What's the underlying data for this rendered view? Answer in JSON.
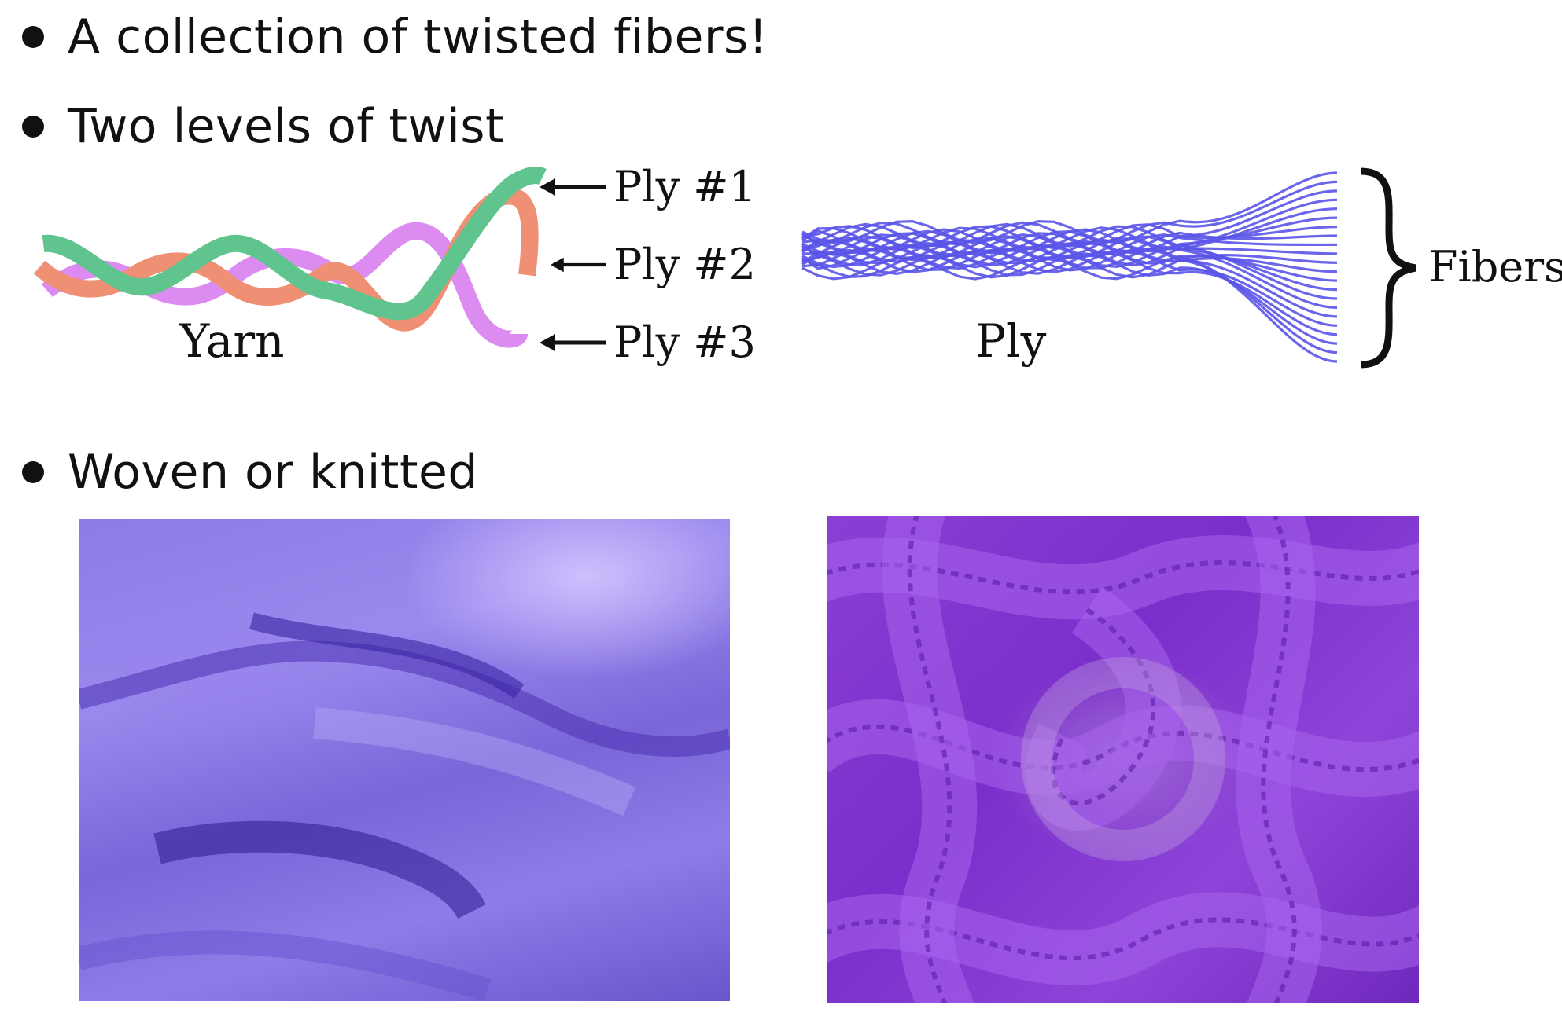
{
  "bullets": [
    "A collection of twisted fibers!",
    "Two levels of twist",
    "Woven or knitted"
  ],
  "yarn_diagram": {
    "caption": "Yarn",
    "plies": [
      "Ply #1",
      "Ply #2",
      "Ply #3"
    ],
    "ply_colors": [
      "#5fc48d",
      "#ef8f73",
      "#dc8cf0"
    ]
  },
  "ply_diagram": {
    "caption": "Ply",
    "fibers_label": "Fibers",
    "fiber_color": "#5a54e8"
  },
  "photos": {
    "woven": {
      "description_icon": "woven-fabric-photo",
      "color": "#8d7be6"
    },
    "knitted": {
      "description_icon": "knitted-fabric-photo",
      "color": "#8a3fd4"
    }
  }
}
